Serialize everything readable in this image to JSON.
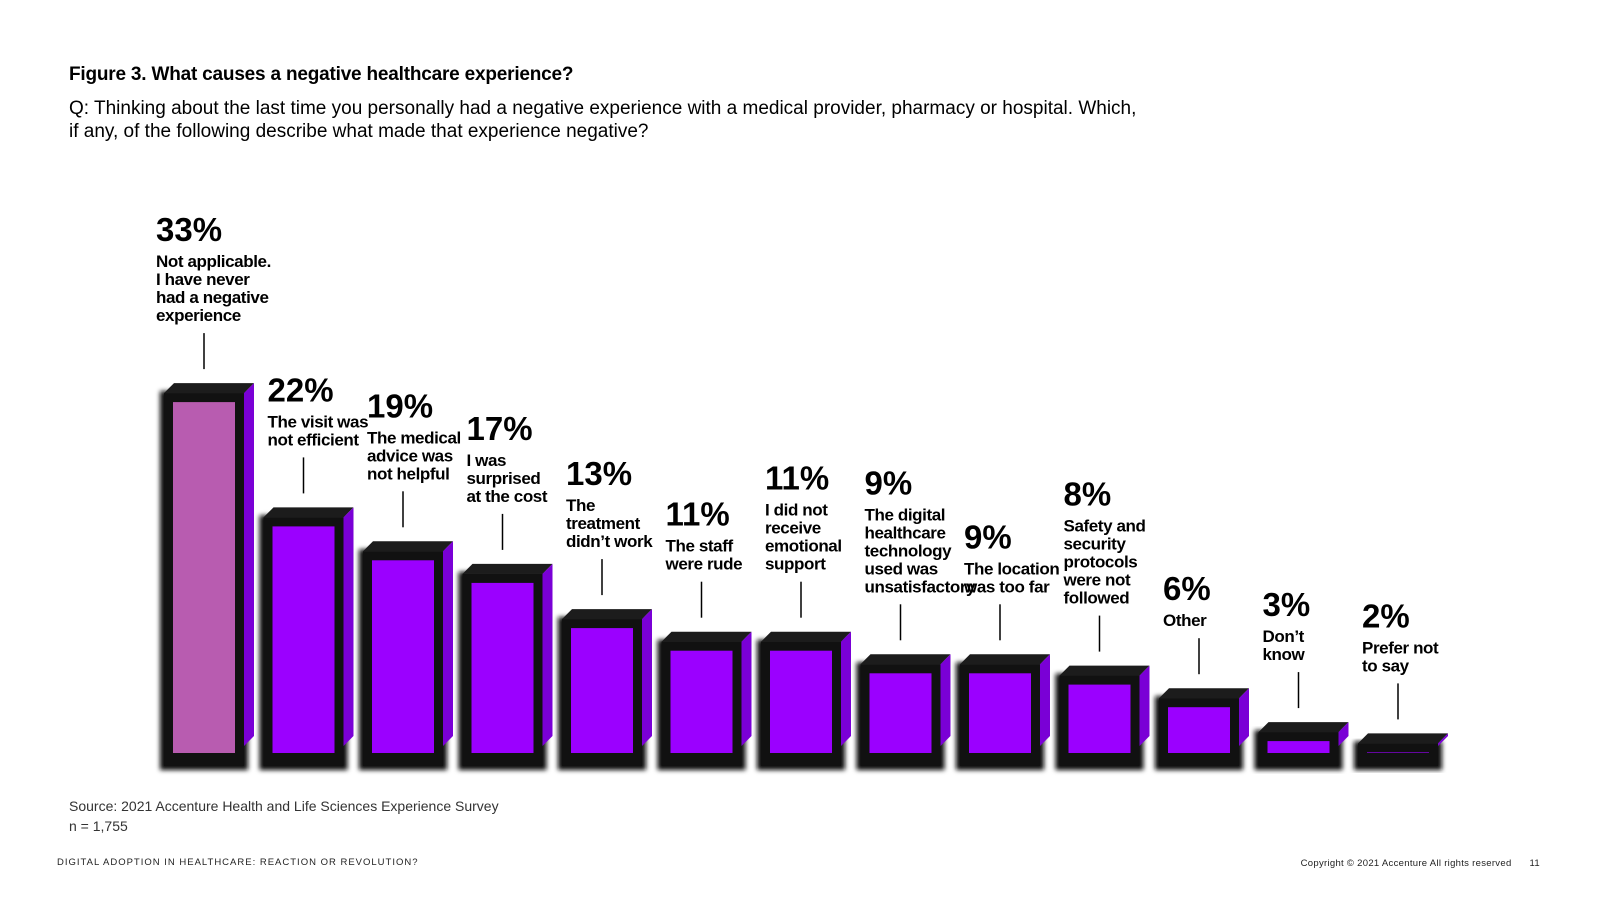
{
  "header": {
    "title": "Figure 3. What causes a negative healthcare experience?",
    "question": "Q: Thinking about the last time you personally had a negative experience with a medical provider, pharmacy or hospital. Which, if any, of the following describe what made that experience negative?"
  },
  "chart_data": {
    "type": "bar",
    "categories": [
      [
        "Not applicable.",
        "I have never",
        "had a negative",
        "experience"
      ],
      [
        "The visit was",
        "not efficient"
      ],
      [
        "The medical",
        "advice was",
        "not helpful"
      ],
      [
        "I was",
        "surprised",
        "at the cost"
      ],
      [
        "The",
        "treatment",
        "didn’t work"
      ],
      [
        "The staff",
        "were rude"
      ],
      [
        "I did not",
        "receive",
        "emotional",
        "support"
      ],
      [
        "The digital",
        "healthcare",
        "technology",
        "used was",
        "unsatisfactory"
      ],
      [
        "The location",
        "was too far"
      ],
      [
        "Safety and",
        "security",
        "protocols",
        "were not",
        "followed"
      ],
      [
        "Other"
      ],
      [
        "Don’t",
        "know"
      ],
      [
        "Prefer not",
        "to say"
      ]
    ],
    "values": [
      33,
      22,
      19,
      17,
      13,
      11,
      11,
      9,
      9,
      8,
      6,
      3,
      2
    ],
    "value_labels": [
      "33%",
      "22%",
      "19%",
      "17%",
      "13%",
      "11%",
      "11%",
      "9%",
      "9%",
      "8%",
      "6%",
      "3%",
      "2%"
    ],
    "value_suffix": "%",
    "highlight_index": 0,
    "colors": {
      "bar": "#9b00ff",
      "highlight": "#b85cb0",
      "bar_shadow": "#0a0a0a",
      "bar_edge": "#7a00d6",
      "leader": "#000000"
    },
    "axes_visible": false,
    "grid": false,
    "legend": "none",
    "xlabel": "",
    "ylabel": ""
  },
  "source": {
    "line1": "Source: 2021 Accenture Health and Life Sciences Experience Survey",
    "line2": "n = 1,755"
  },
  "footer": {
    "left": "DIGITAL ADOPTION IN HEALTHCARE: REACTION OR REVOLUTION?",
    "right": "Copyright © 2021 Accenture All rights reserved",
    "page": "11"
  }
}
